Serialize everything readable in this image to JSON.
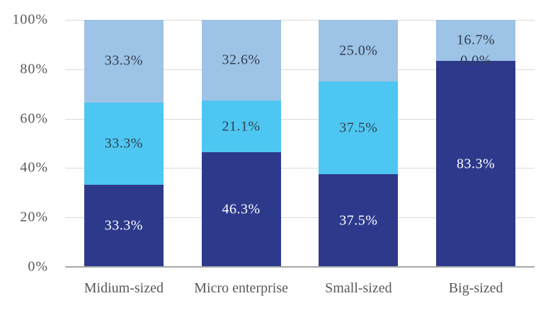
{
  "chart_data": {
    "type": "bar",
    "subtype": "stacked-100-percent",
    "title": "",
    "xlabel": "",
    "ylabel": "",
    "legend": "none",
    "grid": true,
    "categories": [
      "Midium-sized",
      "Micro enterprise",
      "Small-sized",
      "Big-sized"
    ],
    "series": [
      {
        "name": "bottom-segment-dark-blue",
        "color": "#2d3a8c",
        "label_color": "#ffffff",
        "values": [
          33.3,
          46.3,
          37.5,
          83.3
        ],
        "labels": [
          "33.3%",
          "46.3%",
          "37.5%",
          "83.3%"
        ]
      },
      {
        "name": "middle-segment-cyan",
        "color": "#4dc7f1",
        "label_color": "#333f50",
        "values": [
          33.3,
          21.1,
          37.5,
          0.0
        ],
        "labels": [
          "33.3%",
          "21.1%",
          "37.5%",
          "0.0%"
        ]
      },
      {
        "name": "top-segment-pale-blue",
        "color": "#9dc3e6",
        "label_color": "#333f50",
        "values": [
          33.3,
          32.6,
          25.0,
          16.7
        ],
        "labels": [
          "33.3%",
          "32.6%",
          "25.0%",
          "16.7%"
        ]
      }
    ],
    "y_axis": {
      "min": 0,
      "max": 100,
      "tick_labels": [
        "0%",
        "20%",
        "40%",
        "60%",
        "80%",
        "100%"
      ],
      "text_color": "#595959"
    },
    "style": {
      "gridline_color": "#d9d9d9",
      "baseline_color": "#a8a8a8",
      "background": "#ffffff"
    }
  }
}
